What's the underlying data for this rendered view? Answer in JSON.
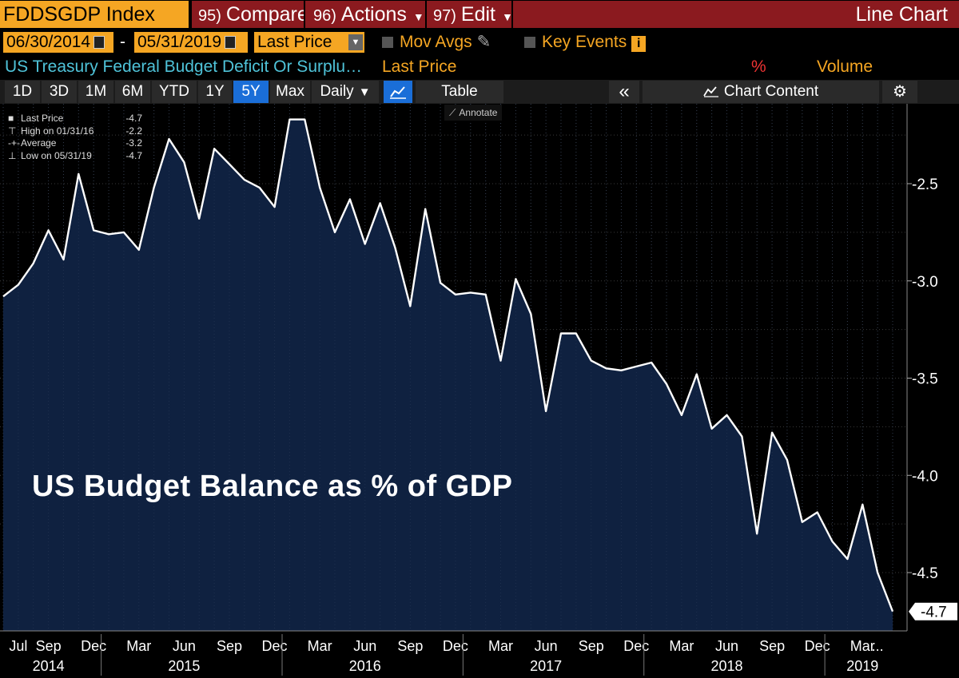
{
  "topbar": {
    "ticker": "FDDSGDP Index",
    "compare_num": "95)",
    "compare": "Compare",
    "actions_num": "96)",
    "actions": "Actions",
    "edit_num": "97)",
    "edit": "Edit",
    "chart_type": "Line Chart"
  },
  "range": {
    "start_date": "06/30/2014",
    "separator": "-",
    "end_date": "05/31/2019",
    "field": "Last Price",
    "mov_avgs": "Mov Avgs",
    "key_events": "Key Events",
    "info_icon": "i"
  },
  "series_row": {
    "security": "US Treasury Federal Budget Deficit Or Surplu…",
    "field": "Last Price",
    "percent": "%",
    "volume": "Volume"
  },
  "toolbar": {
    "periods": [
      "1D",
      "3D",
      "1M",
      "6M",
      "YTD",
      "1Y",
      "5Y",
      "Max"
    ],
    "selected": "5Y",
    "frequency": "Daily",
    "table": "Table",
    "collapse": "«",
    "chart_content": "Chart Content",
    "settings": "⚙"
  },
  "legend": {
    "rows": [
      {
        "label": "Last Price",
        "value": "-4.7"
      },
      {
        "label": "High on 01/31/16",
        "value": "-2.2"
      },
      {
        "label": "Average",
        "value": "-3.2"
      },
      {
        "label": "Low on 05/31/19",
        "value": "-4.7"
      }
    ]
  },
  "annotate": "Annotate",
  "overlay_text": "US Budget Balance as % of GDP",
  "colors": {
    "orange": "#f5a623",
    "maroon": "#8b1a1f",
    "fill": "#0f2140",
    "line": "#ffffff",
    "select_blue": "#1a6ed8"
  },
  "chart_data": {
    "type": "area",
    "ylim": [
      -4.8,
      -2.2
    ],
    "yticks": [
      -2.5,
      -3.0,
      -3.5,
      -4.0,
      -4.5
    ],
    "ytick_labels": [
      "-2.5",
      "-3.0",
      "-3.5",
      "-4.0",
      "-4.5"
    ],
    "last_value_label": "-4.7",
    "month_labels": [
      {
        "i": 1,
        "t": "Jul"
      },
      {
        "i": 3,
        "t": "Sep"
      },
      {
        "i": 6,
        "t": "Dec"
      },
      {
        "i": 9,
        "t": "Mar"
      },
      {
        "i": 12,
        "t": "Jun"
      },
      {
        "i": 15,
        "t": "Sep"
      },
      {
        "i": 18,
        "t": "Dec"
      },
      {
        "i": 21,
        "t": "Mar"
      },
      {
        "i": 24,
        "t": "Jun"
      },
      {
        "i": 27,
        "t": "Sep"
      },
      {
        "i": 30,
        "t": "Dec"
      },
      {
        "i": 33,
        "t": "Mar"
      },
      {
        "i": 36,
        "t": "Jun"
      },
      {
        "i": 39,
        "t": "Sep"
      },
      {
        "i": 42,
        "t": "Dec"
      },
      {
        "i": 45,
        "t": "Mar"
      },
      {
        "i": 48,
        "t": "Jun"
      },
      {
        "i": 51,
        "t": "Sep"
      },
      {
        "i": 54,
        "t": "Dec"
      },
      {
        "i": 57,
        "t": "Mar"
      },
      {
        "i": 58,
        "t": "..."
      }
    ],
    "year_labels": [
      {
        "i": 3,
        "t": "2014"
      },
      {
        "i": 12,
        "t": "2015"
      },
      {
        "i": 24,
        "t": "2016"
      },
      {
        "i": 36,
        "t": "2017"
      },
      {
        "i": 48,
        "t": "2018"
      },
      {
        "i": 57,
        "t": "2019"
      }
    ],
    "year_dividers": [
      6.5,
      18.5,
      30.5,
      42.5,
      54.5
    ],
    "values": [
      -3.08,
      -3.02,
      -2.91,
      -2.74,
      -2.89,
      -2.45,
      -2.74,
      -2.76,
      -2.75,
      -2.84,
      -2.52,
      -2.27,
      -2.39,
      -2.68,
      -2.32,
      -2.4,
      -2.48,
      -2.52,
      -2.62,
      -2.17,
      -2.17,
      -2.52,
      -2.75,
      -2.58,
      -2.81,
      -2.6,
      -2.83,
      -3.13,
      -2.63,
      -3.01,
      -3.07,
      -3.06,
      -3.07,
      -3.41,
      -2.99,
      -3.17,
      -3.67,
      -3.27,
      -3.27,
      -3.41,
      -3.45,
      -3.46,
      -3.44,
      -3.42,
      -3.53,
      -3.69,
      -3.48,
      -3.76,
      -3.69,
      -3.8,
      -4.3,
      -3.78,
      -3.92,
      -4.24,
      -4.19,
      -4.34,
      -4.43,
      -4.15,
      -4.5,
      -4.7
    ]
  }
}
